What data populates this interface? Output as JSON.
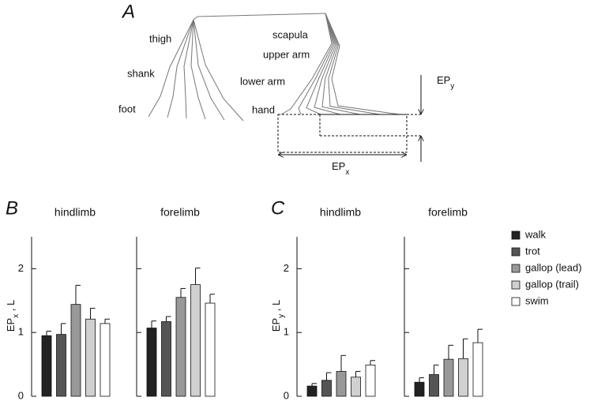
{
  "figure": {
    "panel": "A",
    "labels": {
      "thigh": "thigh",
      "shank": "shank",
      "foot": "foot",
      "scapula": "scapula",
      "upper_arm": "upper arm",
      "lower_arm": "lower arm",
      "hand": "hand"
    },
    "epy": {
      "main": "EP",
      "sub": "y"
    },
    "epx": {
      "main": "EP",
      "sub": "x"
    }
  },
  "chart_data": [
    {
      "type": "bar",
      "panel": "B",
      "title": "hindlimb",
      "ylabel": {
        "main": "EP",
        "sub": "x",
        "rest": " , L"
      },
      "ylim": [
        0,
        2.5
      ],
      "yticks": [
        0,
        1,
        2
      ],
      "series": [
        {
          "name": "walk",
          "color": "#222222",
          "values": [
            0.95
          ],
          "errors": [
            0.07
          ]
        },
        {
          "name": "trot",
          "color": "#555555",
          "values": [
            0.97
          ],
          "errors": [
            0.17
          ]
        },
        {
          "name": "gallop (lead)",
          "color": "#999999",
          "values": [
            1.44
          ],
          "errors": [
            0.3
          ]
        },
        {
          "name": "gallop (trail)",
          "color": "#d0d0d0",
          "values": [
            1.21
          ],
          "errors": [
            0.17
          ]
        },
        {
          "name": "swim",
          "color": "#ffffff",
          "values": [
            1.14
          ],
          "errors": [
            0.07
          ]
        }
      ]
    },
    {
      "type": "bar",
      "title": "forelimb",
      "ylim": [
        0,
        2.5
      ],
      "yticks": [
        0,
        1,
        2
      ],
      "series": [
        {
          "name": "walk",
          "color": "#222222",
          "values": [
            1.07
          ],
          "errors": [
            0.11
          ]
        },
        {
          "name": "trot",
          "color": "#555555",
          "values": [
            1.17
          ],
          "errors": [
            0.08
          ]
        },
        {
          "name": "gallop (lead)",
          "color": "#999999",
          "values": [
            1.55
          ],
          "errors": [
            0.14
          ]
        },
        {
          "name": "gallop (trail)",
          "color": "#d0d0d0",
          "values": [
            1.75
          ],
          "errors": [
            0.26
          ]
        },
        {
          "name": "swim",
          "color": "#ffffff",
          "values": [
            1.46
          ],
          "errors": [
            0.14
          ]
        }
      ]
    },
    {
      "type": "bar",
      "panel": "C",
      "title": "hindlimb",
      "ylabel": {
        "main": "EP",
        "sub": "y",
        "rest": " , L"
      },
      "ylim": [
        0,
        2.5
      ],
      "yticks": [
        0,
        1,
        2
      ],
      "series": [
        {
          "name": "walk",
          "color": "#222222",
          "values": [
            0.16
          ],
          "errors": [
            0.04
          ]
        },
        {
          "name": "trot",
          "color": "#555555",
          "values": [
            0.25
          ],
          "errors": [
            0.12
          ]
        },
        {
          "name": "gallop (lead)",
          "color": "#999999",
          "values": [
            0.39
          ],
          "errors": [
            0.25
          ]
        },
        {
          "name": "gallop (trail)",
          "color": "#d0d0d0",
          "values": [
            0.3
          ],
          "errors": [
            0.09
          ]
        },
        {
          "name": "swim",
          "color": "#ffffff",
          "values": [
            0.49
          ],
          "errors": [
            0.07
          ]
        }
      ]
    },
    {
      "type": "bar",
      "title": "forelimb",
      "ylim": [
        0,
        2.5
      ],
      "yticks": [
        0,
        1,
        2
      ],
      "series": [
        {
          "name": "walk",
          "color": "#222222",
          "values": [
            0.22
          ],
          "errors": [
            0.07
          ]
        },
        {
          "name": "trot",
          "color": "#555555",
          "values": [
            0.34
          ],
          "errors": [
            0.15
          ]
        },
        {
          "name": "gallop (lead)",
          "color": "#999999",
          "values": [
            0.58
          ],
          "errors": [
            0.22
          ]
        },
        {
          "name": "gallop (trail)",
          "color": "#d0d0d0",
          "values": [
            0.59
          ],
          "errors": [
            0.31
          ]
        },
        {
          "name": "swim",
          "color": "#ffffff",
          "values": [
            0.84
          ],
          "errors": [
            0.21
          ]
        }
      ]
    }
  ]
}
